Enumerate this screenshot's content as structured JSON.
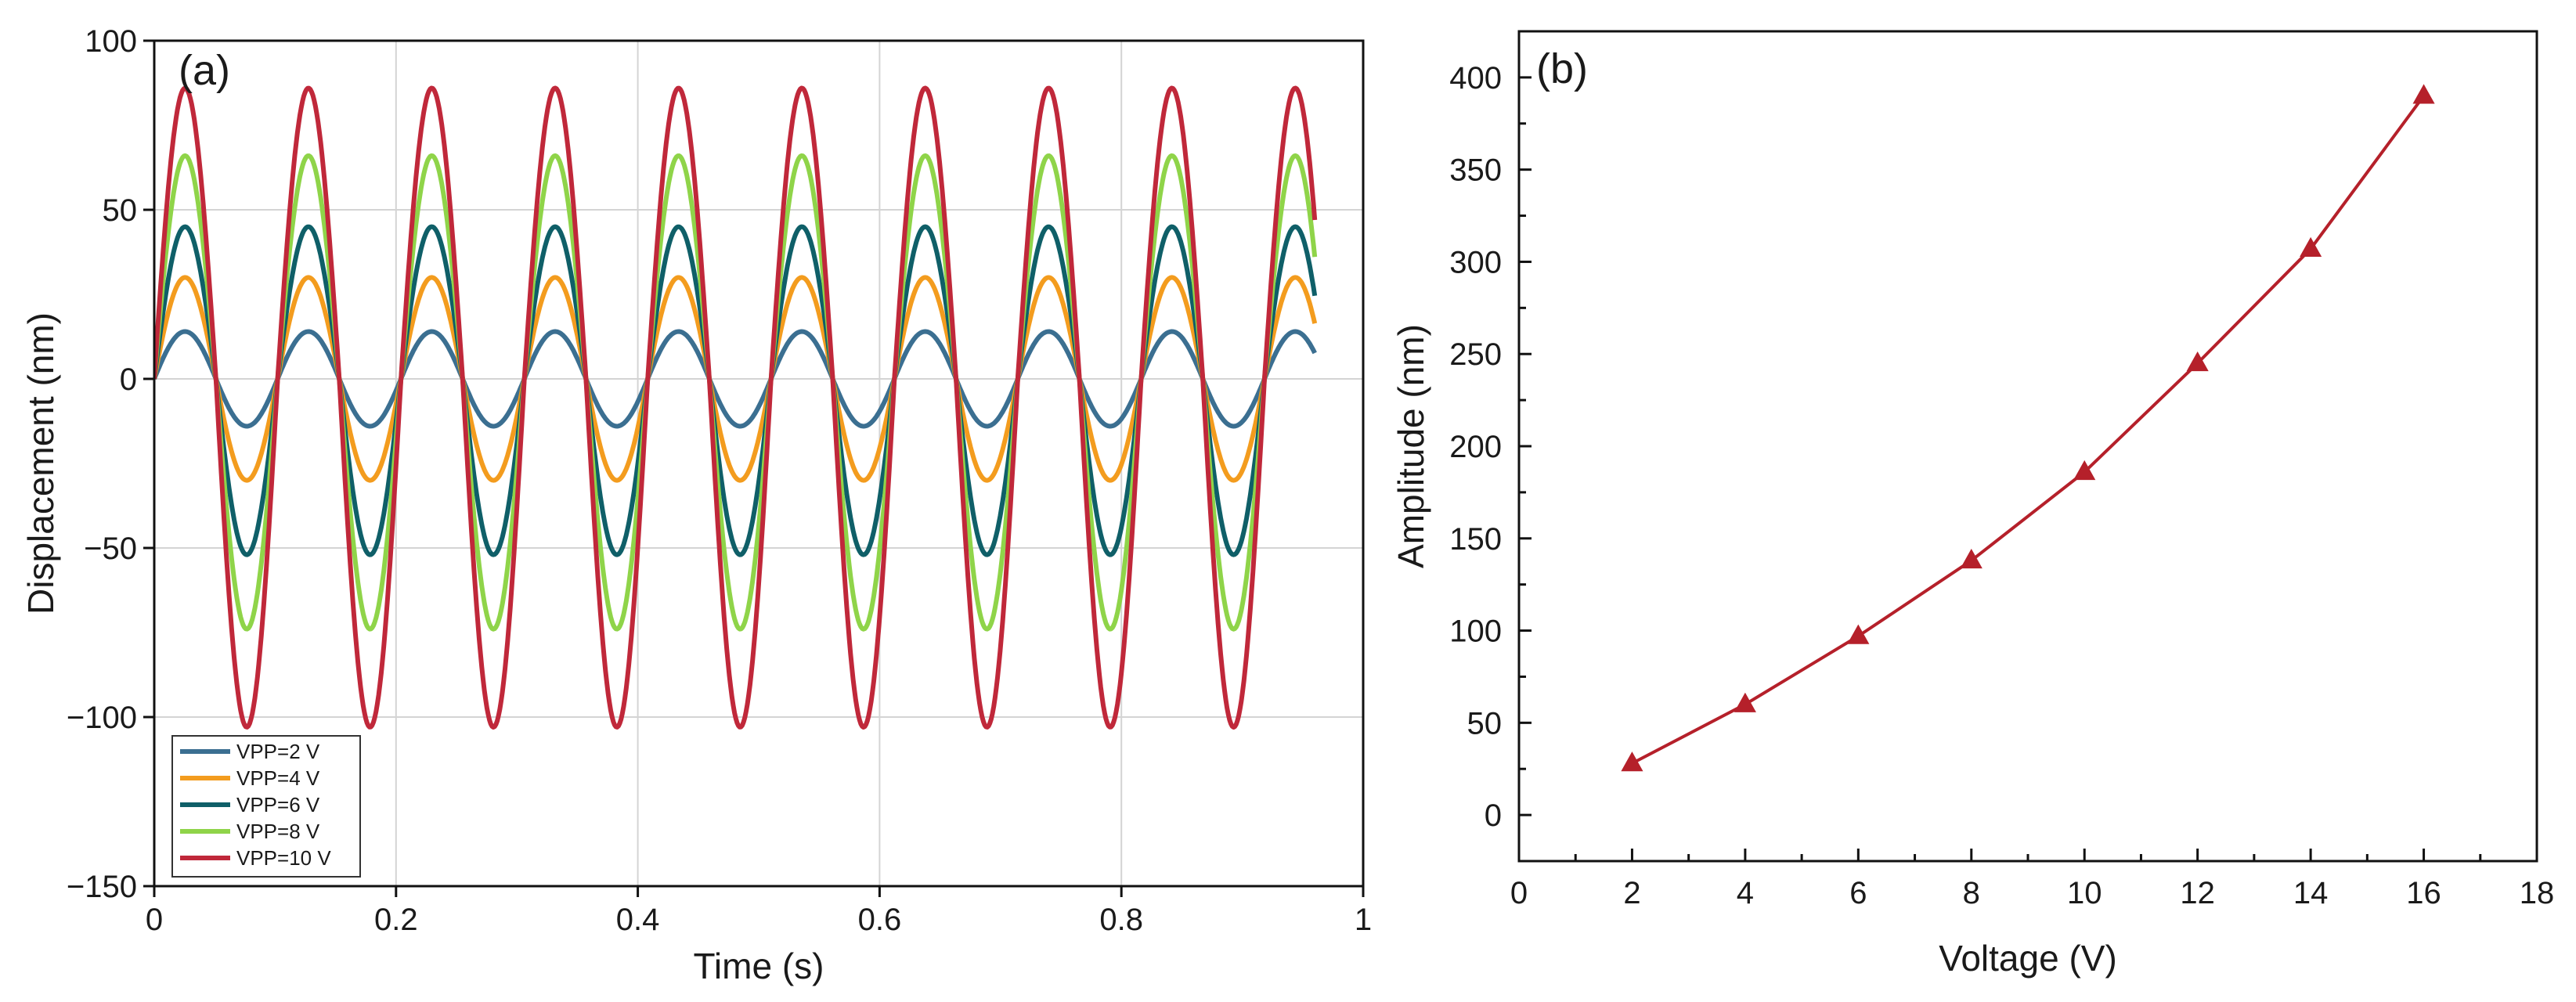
{
  "chart_data": [
    {
      "type": "line",
      "panel": "(a)",
      "xlabel": "Time (s)",
      "ylabel": "Displacement (nm)",
      "xlim": [
        0,
        1
      ],
      "ylim": [
        -150,
        100
      ],
      "xticks": [
        0,
        0.2,
        0.4,
        0.6,
        0.8,
        1
      ],
      "xtick_labels": [
        "0",
        "0.2",
        "0.4",
        "0.6",
        "0.8",
        "1"
      ],
      "yticks": [
        -150,
        -100,
        -50,
        0,
        50,
        100
      ],
      "ytick_labels": [
        "−150",
        "−100",
        "−50",
        "0",
        "50",
        "100"
      ],
      "grid": true,
      "legend_position": "bottom-left",
      "frequency_hz": 9.8,
      "t_end": 0.96,
      "series": [
        {
          "name": "VPP=2 V",
          "color": "#3b6f91",
          "amplitude_pos": 14,
          "amplitude_neg": 14
        },
        {
          "name": "VPP=4 V",
          "color": "#f39c1e",
          "amplitude_pos": 30,
          "amplitude_neg": 30
        },
        {
          "name": "VPP=6 V",
          "color": "#0f5f68",
          "amplitude_pos": 45,
          "amplitude_neg": 52
        },
        {
          "name": "VPP=8 V",
          "color": "#8fd449",
          "amplitude_pos": 66,
          "amplitude_neg": 74
        },
        {
          "name": "VPP=10 V",
          "color": "#c0283a",
          "amplitude_pos": 86,
          "amplitude_neg": 103
        }
      ]
    },
    {
      "type": "line",
      "panel": "(b)",
      "xlabel": "Voltage (V)",
      "ylabel": "Amplitude (nm)",
      "xlim": [
        0,
        18
      ],
      "ylim": [
        -25,
        425
      ],
      "xticks": [
        0,
        2,
        4,
        6,
        8,
        10,
        12,
        14,
        16,
        18
      ],
      "xtick_labels": [
        "0",
        "2",
        "4",
        "6",
        "8",
        "10",
        "12",
        "14",
        "16",
        "18"
      ],
      "yticks": [
        0,
        50,
        100,
        150,
        200,
        250,
        300,
        350,
        400
      ],
      "ytick_labels": [
        "0",
        "50",
        "100",
        "150",
        "200",
        "250",
        "300",
        "350",
        "400"
      ],
      "grid": false,
      "series": [
        {
          "name": "Amplitude",
          "color": "#b5202a",
          "marker": "triangle",
          "x": [
            2,
            4,
            6,
            8,
            10,
            12,
            14,
            16
          ],
          "values": [
            28,
            60,
            97,
            138,
            186,
            245,
            307,
            390
          ]
        }
      ]
    }
  ]
}
